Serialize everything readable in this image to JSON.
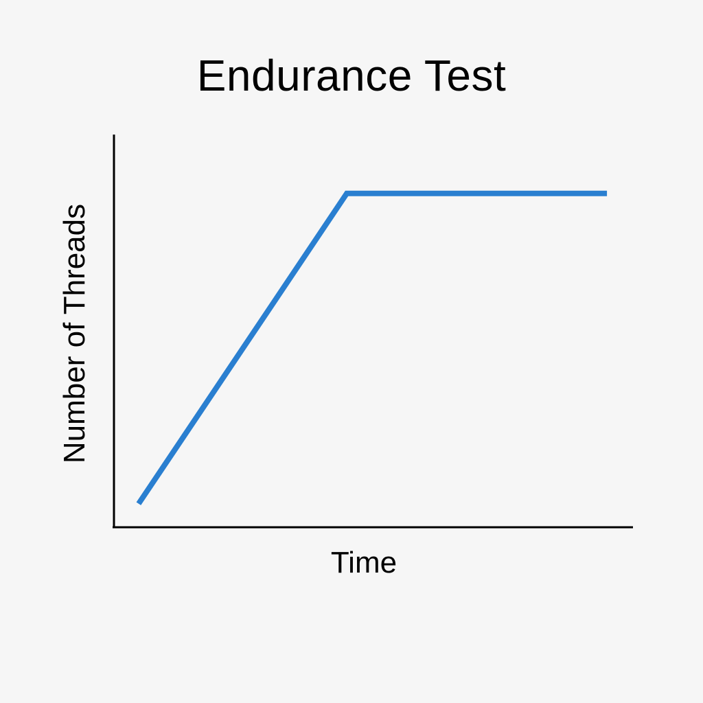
{
  "chart_data": {
    "type": "line",
    "title": "Endurance Test",
    "xlabel": "Time",
    "ylabel": "Number of Threads",
    "xlim": [
      0,
      10
    ],
    "ylim": [
      0,
      10
    ],
    "grid": false,
    "series": [
      {
        "x": [
          0.5,
          4.5,
          9.5
        ],
        "y": [
          0.6,
          8.5,
          8.5
        ],
        "color": "#2a7fd0"
      }
    ]
  },
  "colors": {
    "background": "#f6f6f6",
    "axis": "#000000",
    "line": "#2a7fd0"
  }
}
